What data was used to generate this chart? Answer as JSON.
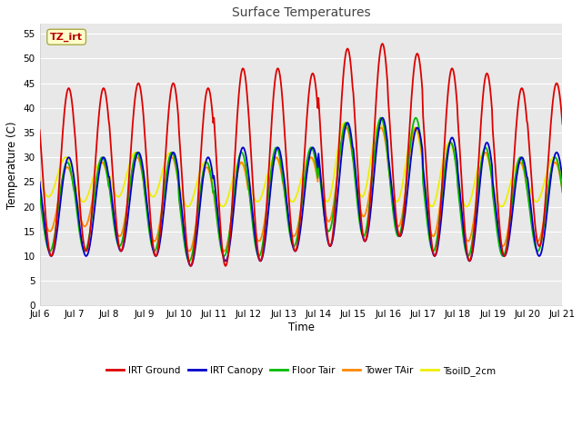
{
  "title": "Surface Temperatures",
  "ylabel": "Temperature (C)",
  "xlabel": "Time",
  "ylim": [
    0,
    57
  ],
  "yticks": [
    0,
    5,
    10,
    15,
    20,
    25,
    30,
    35,
    40,
    45,
    50,
    55
  ],
  "bg_color": "#e8e8e8",
  "fig_color": "#ffffff",
  "grid_color": "#ffffff",
  "series": {
    "IRT Ground": {
      "color": "#dd0000",
      "lw": 1.3
    },
    "IRT Canopy": {
      "color": "#0000cc",
      "lw": 1.3
    },
    "Floor Tair": {
      "color": "#00bb00",
      "lw": 1.3
    },
    "Tower TAir": {
      "color": "#ff8800",
      "lw": 1.3
    },
    "TsoilD_2cm": {
      "color": "#eeee00",
      "lw": 1.3
    }
  },
  "tz_label": "TZ_irt",
  "tz_label_color": "#bb0000",
  "tz_box_color": "#ffffcc",
  "tz_box_edge": "#aaaa44",
  "irt_ground_peaks": [
    44,
    44,
    45,
    45,
    44,
    48,
    48,
    47,
    52,
    53,
    51,
    48,
    47,
    44,
    45
  ],
  "irt_ground_mins": [
    10,
    11,
    11,
    10,
    8,
    8,
    9,
    11,
    12,
    13,
    14,
    10,
    9,
    10,
    12
  ],
  "irt_canopy_peaks": [
    30,
    30,
    31,
    31,
    30,
    32,
    32,
    32,
    37,
    38,
    36,
    34,
    33,
    30,
    31
  ],
  "irt_canopy_mins": [
    10,
    10,
    11,
    10,
    8,
    9,
    9,
    11,
    12,
    13,
    14,
    10,
    9,
    10,
    10
  ],
  "floor_tair_peaks": [
    29,
    30,
    31,
    31,
    29,
    31,
    32,
    32,
    37,
    38,
    38,
    33,
    32,
    30,
    30
  ],
  "floor_tair_mins": [
    11,
    11,
    12,
    11,
    9,
    10,
    10,
    12,
    15,
    14,
    14,
    11,
    10,
    10,
    11
  ],
  "tower_tair_peaks": [
    28,
    29,
    30,
    30,
    28,
    29,
    30,
    30,
    36,
    36,
    36,
    33,
    31,
    29,
    29
  ],
  "tower_tair_mins": [
    15,
    16,
    14,
    13,
    11,
    11,
    13,
    14,
    17,
    18,
    16,
    14,
    13,
    12,
    13
  ],
  "tsoil_peaks": [
    30,
    29,
    31,
    31,
    29,
    29,
    30,
    30,
    37,
    37,
    36,
    33,
    31,
    29,
    30
  ],
  "tsoil_mins": [
    22,
    21,
    22,
    22,
    20,
    20,
    21,
    21,
    21,
    22,
    21,
    20,
    20,
    20,
    21
  ]
}
